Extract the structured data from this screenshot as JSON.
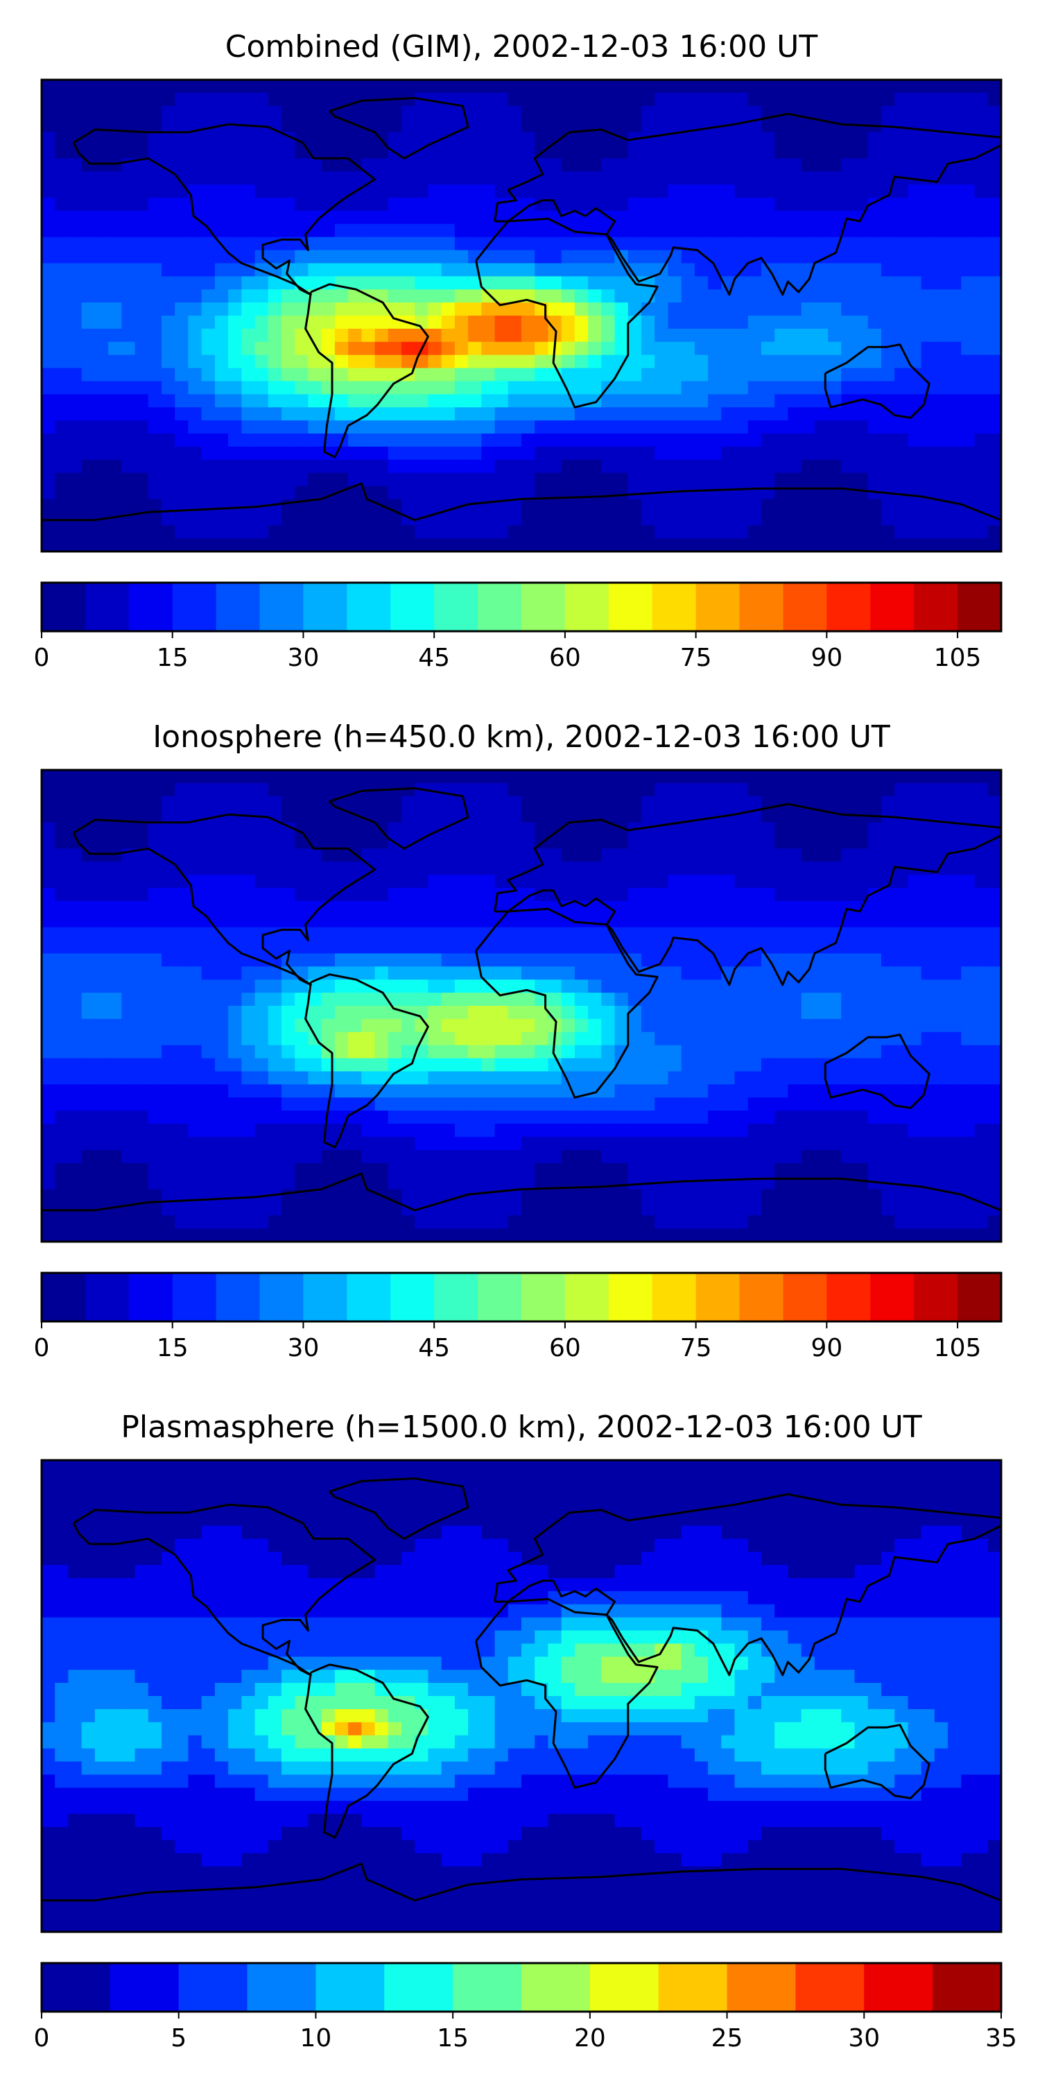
{
  "panels": [
    {
      "title": "Combined (GIM), 2002-12-03 16:00 UT",
      "colorbar": {
        "min": 0,
        "max": 110,
        "levels": 22,
        "ticks": [
          "0",
          "15",
          "30",
          "45",
          "60",
          "75",
          "90",
          "105"
        ],
        "tick_values": [
          0,
          15,
          30,
          45,
          60,
          75,
          90,
          105
        ]
      },
      "blobs": [
        {
          "lon": -50,
          "lat": -10,
          "rx": 85,
          "ry": 35,
          "v": 70
        },
        {
          "lon": -40,
          "lat": -12,
          "rx": 45,
          "ry": 16,
          "v": 92
        },
        {
          "lon": -8,
          "lat": -5,
          "rx": 55,
          "ry": 22,
          "v": 88
        },
        {
          "lon": -60,
          "lat": -12,
          "rx": 28,
          "ry": 14,
          "v": 82
        },
        {
          "lon": 0,
          "lat": -18,
          "rx": 140,
          "ry": 30,
          "v": 40
        },
        {
          "lon": 100,
          "lat": -12,
          "rx": 90,
          "ry": 26,
          "v": 30
        },
        {
          "lon": 40,
          "lat": 10,
          "rx": 45,
          "ry": 25,
          "v": 32
        },
        {
          "lon": -150,
          "lat": -15,
          "rx": 40,
          "ry": 25,
          "v": 24
        }
      ]
    },
    {
      "title": "Ionosphere  (h=450.0 km), 2002-12-03 16:00 UT",
      "colorbar": {
        "min": 0,
        "max": 110,
        "levels": 22,
        "ticks": [
          "0",
          "15",
          "30",
          "45",
          "60",
          "75",
          "90",
          "105"
        ],
        "tick_values": [
          0,
          15,
          30,
          45,
          60,
          75,
          90,
          105
        ]
      },
      "blobs": [
        {
          "lon": -45,
          "lat": -8,
          "rx": 80,
          "ry": 30,
          "v": 55
        },
        {
          "lon": -15,
          "lat": -8,
          "rx": 60,
          "ry": 24,
          "v": 66
        },
        {
          "lon": -60,
          "lat": -15,
          "rx": 30,
          "ry": 15,
          "v": 62
        },
        {
          "lon": 0,
          "lat": -20,
          "rx": 130,
          "ry": 30,
          "v": 32
        },
        {
          "lon": 90,
          "lat": -15,
          "rx": 80,
          "ry": 22,
          "v": 22
        },
        {
          "lon": -150,
          "lat": -10,
          "rx": 40,
          "ry": 25,
          "v": 20
        }
      ]
    },
    {
      "title": "Plasmasphere (h=1500.0 km), 2002-12-03 16:00 UT",
      "colorbar": {
        "min": 0,
        "max": 35,
        "levels": 14,
        "ticks": [
          "0",
          "5",
          "10",
          "15",
          "20",
          "25",
          "30",
          "35"
        ],
        "tick_values": [
          0,
          5,
          10,
          15,
          20,
          25,
          30,
          35
        ]
      },
      "blobs": [
        {
          "lon": -60,
          "lat": -10,
          "rx": 70,
          "ry": 28,
          "v": 18
        },
        {
          "lon": -62,
          "lat": -12,
          "rx": 25,
          "ry": 12,
          "v": 25
        },
        {
          "lon": 45,
          "lat": 10,
          "rx": 65,
          "ry": 28,
          "v": 18
        },
        {
          "lon": 55,
          "lat": 15,
          "rx": 20,
          "ry": 10,
          "v": 21
        },
        {
          "lon": 110,
          "lat": -15,
          "rx": 70,
          "ry": 28,
          "v": 13
        },
        {
          "lon": 0,
          "lat": -5,
          "rx": 160,
          "ry": 40,
          "v": 8
        },
        {
          "lon": -150,
          "lat": -15,
          "rx": 45,
          "ry": 25,
          "v": 11
        }
      ]
    }
  ]
}
